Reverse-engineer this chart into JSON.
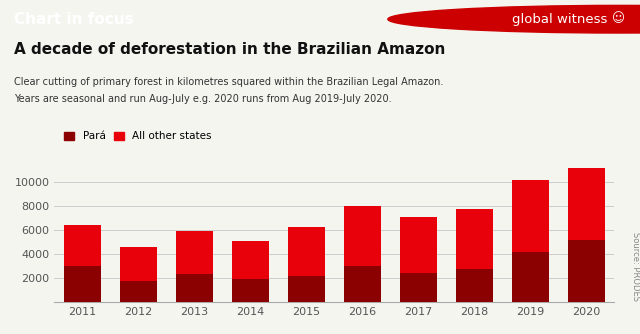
{
  "years": [
    "2011",
    "2012",
    "2013",
    "2014",
    "2015",
    "2016",
    "2017",
    "2018",
    "2019",
    "2020"
  ],
  "para_values": [
    3000,
    1800,
    2350,
    1950,
    2200,
    3050,
    2450,
    2750,
    4200,
    5200
  ],
  "other_values": [
    3450,
    2750,
    3600,
    3100,
    4050,
    4950,
    4600,
    5000,
    5950,
    5950
  ],
  "para_color": "#8B0000",
  "other_color": "#E8000A",
  "header_bg": "#3d3d3d",
  "header_text_color": "#ffffff",
  "chart_bg": "#f5f5f0",
  "plot_bg": "#f5f5f0",
  "grid_color": "#cccccc",
  "title": "A decade of deforestation in the Brazilian Amazon",
  "subtitle1": "Clear cutting of primary forest in kilometres squared within the Brazilian Legal Amazon.",
  "subtitle2": "Years are seasonal and run Aug-July e.g. 2020 runs from Aug 2019-July 2020.",
  "header_label": "Chart in focus",
  "source_text": "Source: PRODES",
  "legend_para": "Pará",
  "legend_other": "All other states",
  "ylim": [
    0,
    11500
  ],
  "yticks": [
    2000,
    4000,
    6000,
    8000,
    10000
  ]
}
